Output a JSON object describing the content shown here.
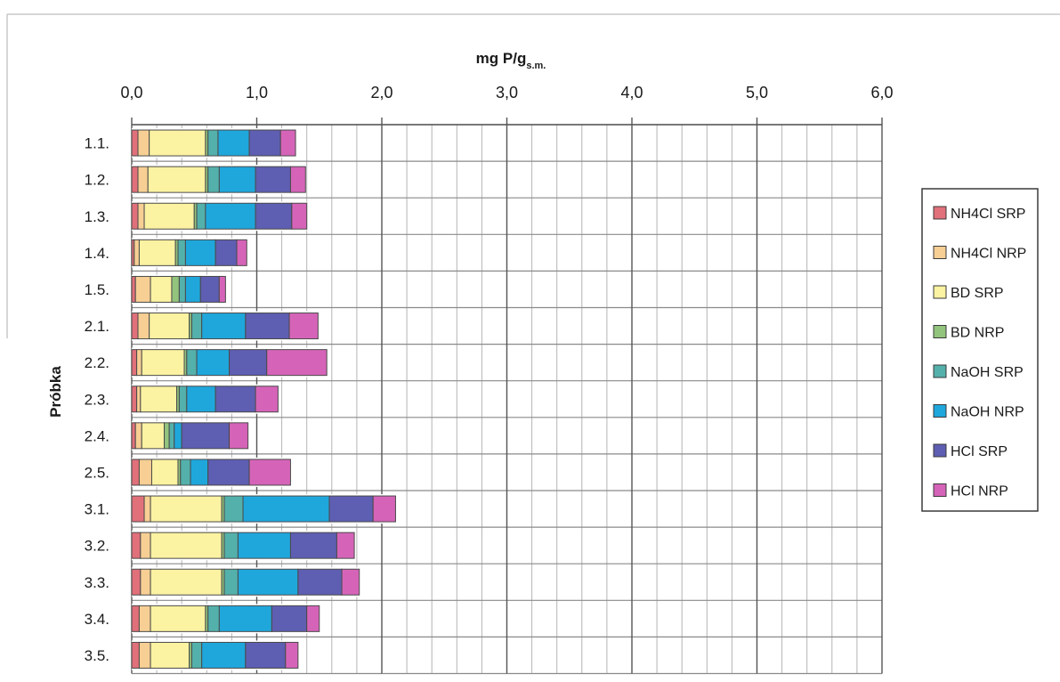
{
  "chart_data": {
    "type": "bar",
    "orientation": "horizontal",
    "stacked": true,
    "xlabel_main": "mg P/g",
    "xlabel_sub": "s.m.",
    "ylabel": "Próbka",
    "xlim": [
      0,
      6
    ],
    "xticks": [
      "0,0",
      "1,0",
      "2,0",
      "3,0",
      "4,0",
      "5,0",
      "6,0"
    ],
    "xtick_values": [
      0,
      1,
      2,
      3,
      4,
      5,
      6
    ],
    "minor_grid_step": 0.2,
    "x_axis_position": "top",
    "grid": true,
    "legend_position": "right",
    "categories": [
      "1.1.",
      "1.2.",
      "1.3.",
      "1.4.",
      "1.5.",
      "2.1.",
      "2.2.",
      "2.3.",
      "2.4.",
      "2.5.",
      "3.1.",
      "3.2.",
      "3.3.",
      "3.4.",
      "3.5."
    ],
    "series": [
      {
        "name": "NH4Cl SRP",
        "color": "#e0707a",
        "values": [
          0.05,
          0.05,
          0.05,
          0.02,
          0.03,
          0.05,
          0.04,
          0.04,
          0.03,
          0.06,
          0.1,
          0.07,
          0.07,
          0.06,
          0.06
        ]
      },
      {
        "name": "NH4Cl NRP",
        "color": "#f7cf94",
        "values": [
          0.09,
          0.08,
          0.05,
          0.04,
          0.12,
          0.09,
          0.04,
          0.03,
          0.05,
          0.1,
          0.05,
          0.08,
          0.08,
          0.09,
          0.09
        ]
      },
      {
        "name": "BD SRP",
        "color": "#fbf2a2",
        "values": [
          0.45,
          0.46,
          0.4,
          0.29,
          0.17,
          0.32,
          0.34,
          0.29,
          0.18,
          0.21,
          0.57,
          0.57,
          0.57,
          0.44,
          0.31
        ]
      },
      {
        "name": "BD NRP",
        "color": "#93c47d",
        "values": [
          0.02,
          0.02,
          0.02,
          0.02,
          0.06,
          0.02,
          0.02,
          0.02,
          0.04,
          0.02,
          0.02,
          0.02,
          0.02,
          0.02,
          0.02
        ]
      },
      {
        "name": "NaOH SRP",
        "color": "#54b0aa",
        "values": [
          0.08,
          0.09,
          0.07,
          0.06,
          0.05,
          0.08,
          0.08,
          0.06,
          0.04,
          0.08,
          0.15,
          0.11,
          0.11,
          0.09,
          0.08
        ]
      },
      {
        "name": "NaOH NRP",
        "color": "#1fa7dc",
        "values": [
          0.25,
          0.29,
          0.4,
          0.24,
          0.12,
          0.35,
          0.26,
          0.23,
          0.06,
          0.14,
          0.69,
          0.42,
          0.48,
          0.42,
          0.35
        ]
      },
      {
        "name": "HCl SRP",
        "color": "#5e5eb2",
        "values": [
          0.25,
          0.28,
          0.29,
          0.17,
          0.15,
          0.35,
          0.3,
          0.32,
          0.38,
          0.33,
          0.35,
          0.37,
          0.35,
          0.28,
          0.32
        ]
      },
      {
        "name": "HCl NRP",
        "color": "#d564b8",
        "values": [
          0.12,
          0.12,
          0.12,
          0.08,
          0.05,
          0.23,
          0.48,
          0.18,
          0.15,
          0.33,
          0.18,
          0.14,
          0.14,
          0.1,
          0.1
        ]
      }
    ]
  }
}
